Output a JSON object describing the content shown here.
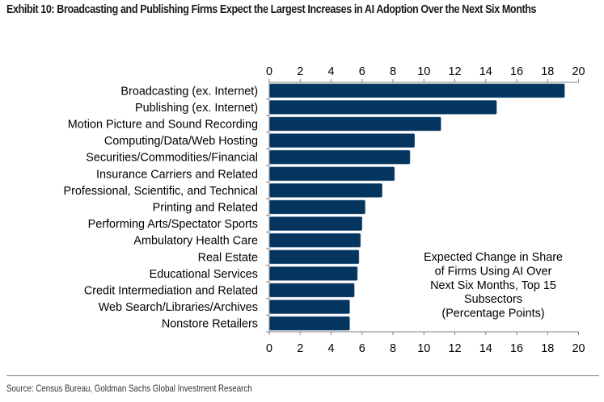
{
  "header": {
    "title": "Exhibit 10: Broadcasting and Publishing Firms Expect the Largest Increases in AI Adoption Over the Next Six Months"
  },
  "footer": {
    "source": "Source: Census Bureau, Goldman Sachs Global Investment Research"
  },
  "colors": {
    "bar": "#03355f",
    "axis": "#808080",
    "divider": "#7f7f7f"
  },
  "chart_data": {
    "type": "bar",
    "orientation": "horizontal",
    "title": "Exhibit 10: Broadcasting and Publishing Firms Expect the Largest Increases in AI Adoption Over the Next Six Months",
    "xlabel": "",
    "ylabel": "",
    "xlim": [
      0,
      20
    ],
    "xticks": [
      0,
      2,
      4,
      6,
      8,
      10,
      12,
      14,
      16,
      18,
      20
    ],
    "axis_labels_position": "top-and-bottom",
    "grid": false,
    "annotation": [
      "Expected Change in Share",
      "of Firms Using AI Over",
      "Next Six Months, Top 15",
      "Subsectors",
      "(Percentage Points)"
    ],
    "annotation_placement": "lower-right",
    "categories": [
      "Broadcasting (ex. Internet)",
      "Publishing (ex. Internet)",
      "Motion Picture and Sound Recording",
      "Computing/Data/Web Hosting",
      "Securities/Commodities/Financial",
      "Insurance Carriers and Related",
      "Professional, Scientific, and Technical",
      "Printing and Related",
      "Performing Arts/Spectator Sports",
      "Ambulatory Health Care",
      "Real Estate",
      "Educational Services",
      "Credit Intermediation and Related",
      "Web Search/Libraries/Archives",
      "Nonstore Retailers"
    ],
    "values": [
      19.1,
      14.7,
      11.1,
      9.4,
      9.1,
      8.1,
      7.3,
      6.2,
      6.0,
      5.9,
      5.8,
      5.7,
      5.5,
      5.2,
      5.2
    ]
  }
}
